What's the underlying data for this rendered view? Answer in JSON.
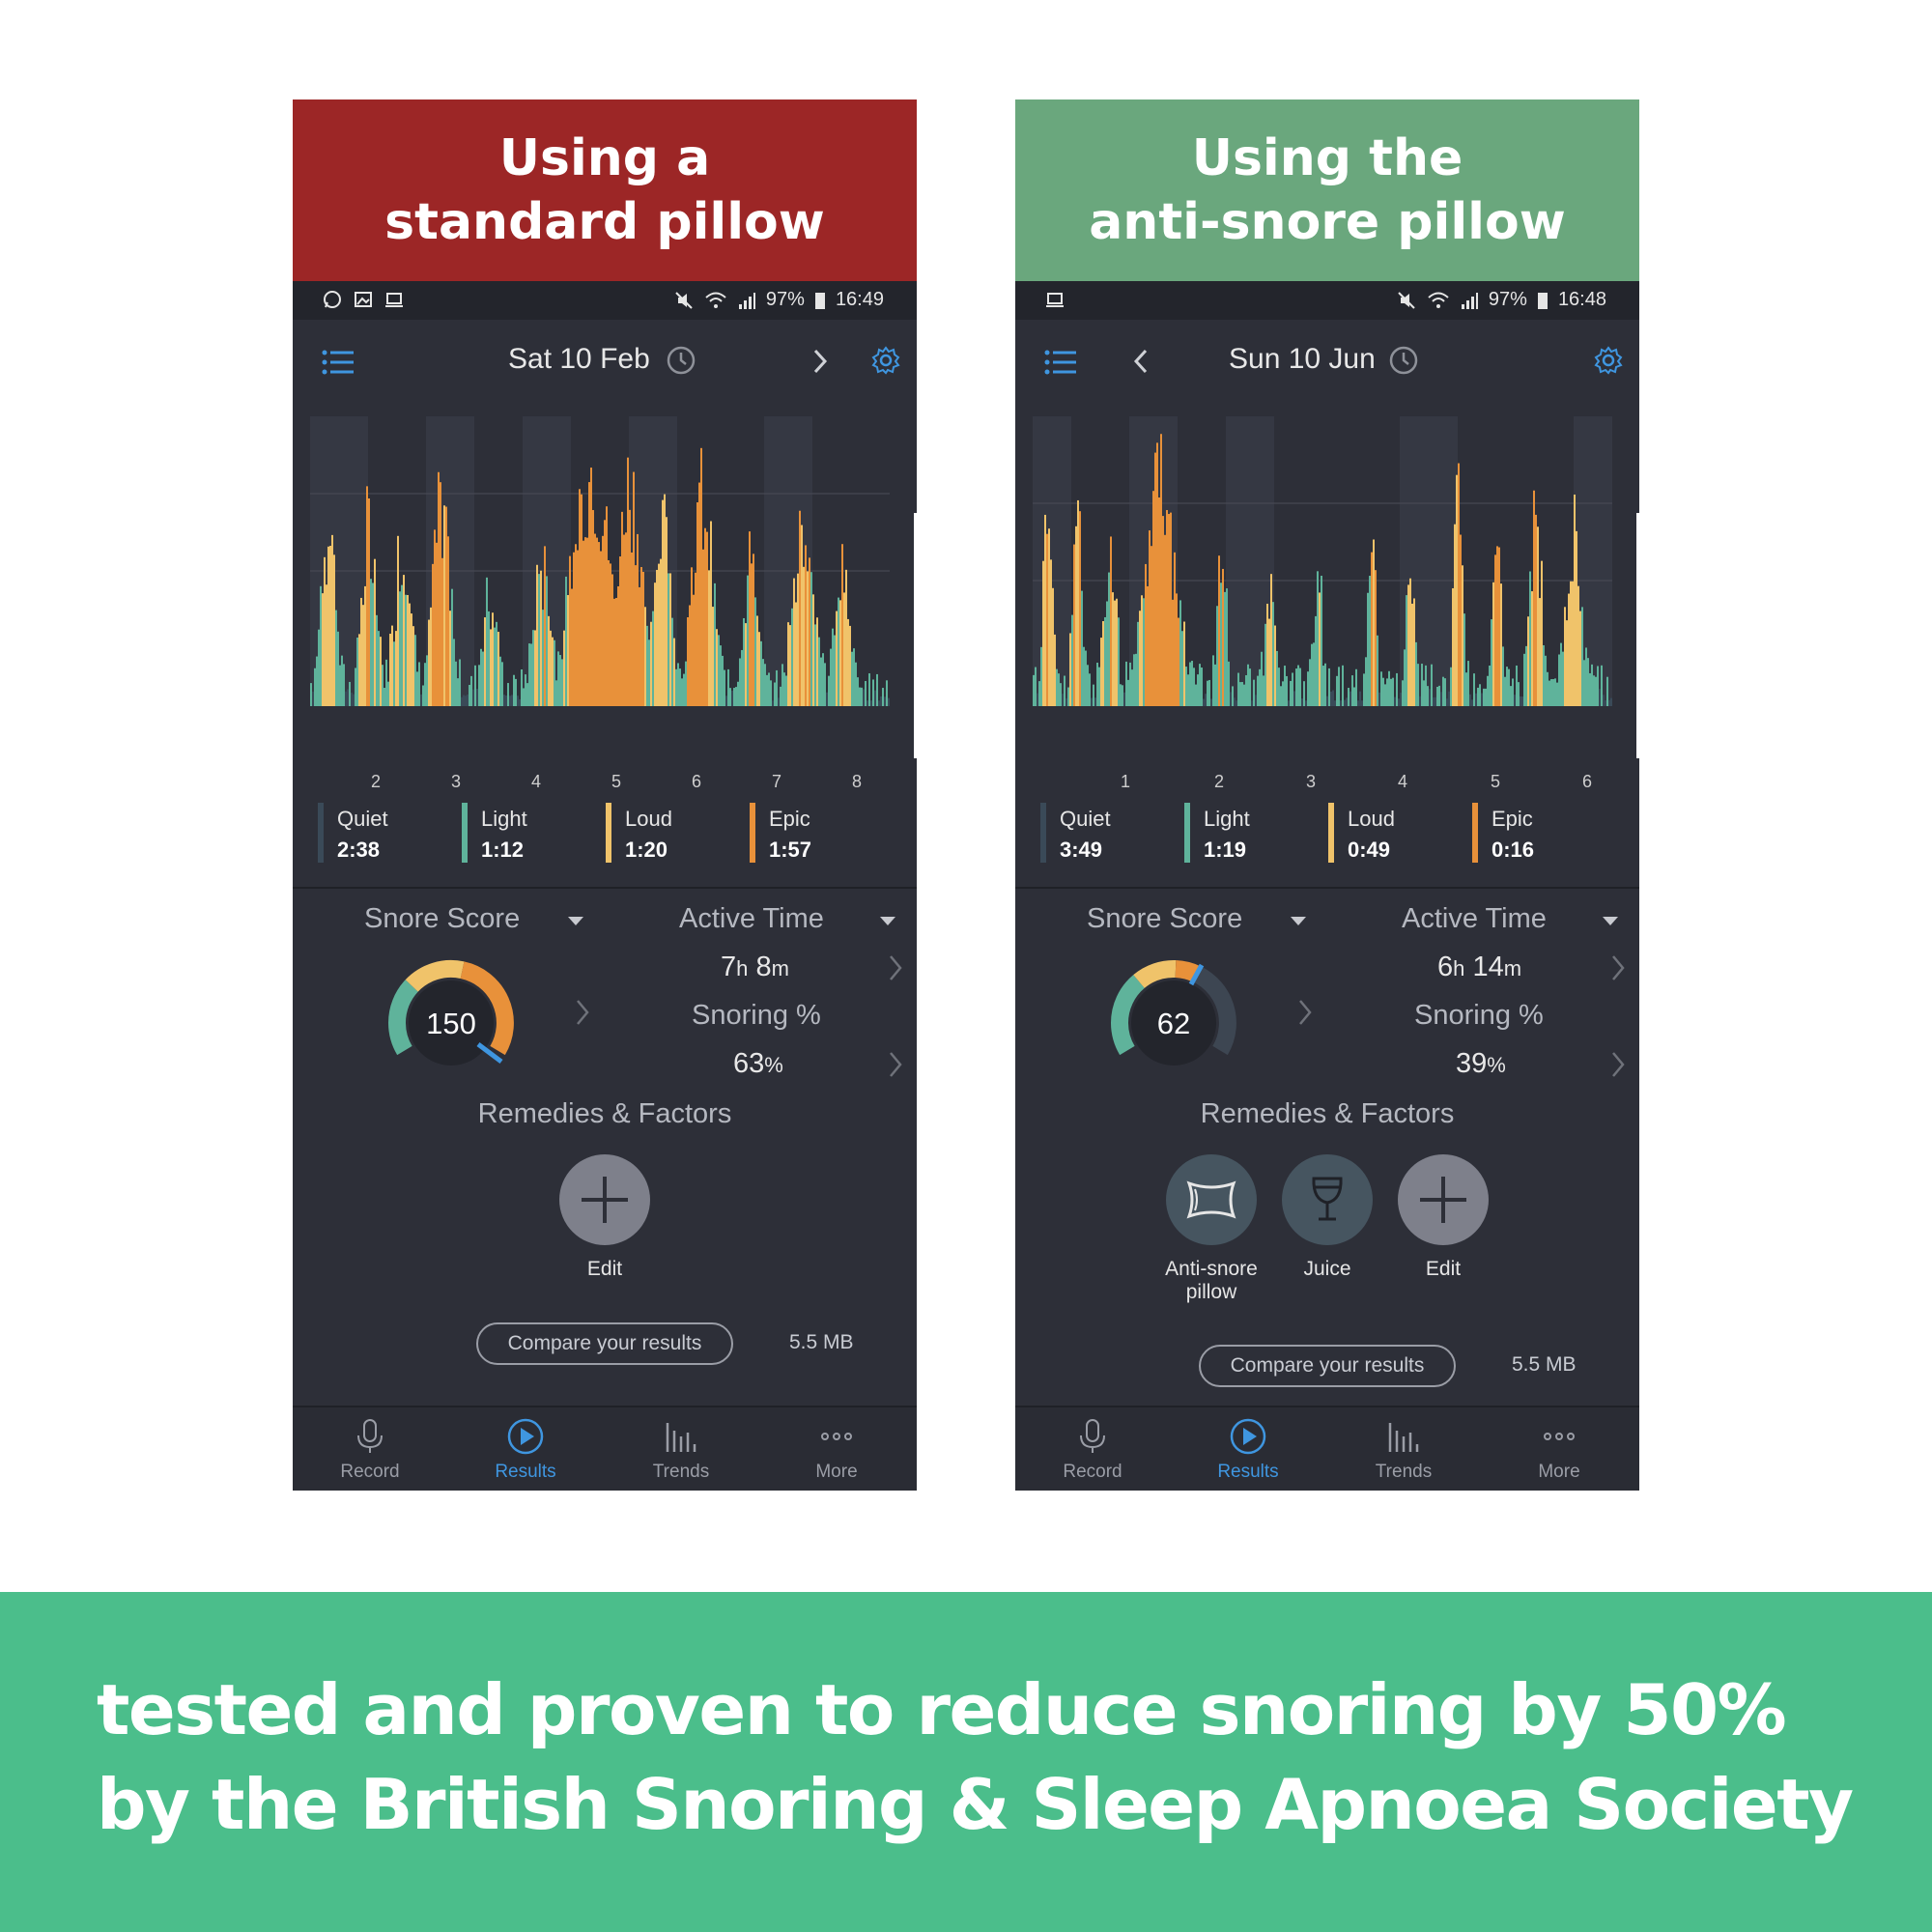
{
  "colors": {
    "quiet": "#3a4a58",
    "light": "#5fb39b",
    "loud": "#f0c36a",
    "epic": "#e8913a",
    "accent": "#3f96e0",
    "red_banner": "#9c2626",
    "green_banner": "#6aa77d",
    "footer": "#4bbe8b"
  },
  "panels": [
    {
      "banner": {
        "line1": "Using a",
        "line2": "standard pillow"
      },
      "status": {
        "battery": "97%",
        "time": "16:49"
      },
      "date": "Sat 10 Feb",
      "ticks": [
        "2",
        "3",
        "4",
        "5",
        "6",
        "7",
        "8"
      ],
      "legend": [
        {
          "name": "Quiet",
          "value": "2:38",
          "color": "#3a4a58"
        },
        {
          "name": "Light",
          "value": "1:12",
          "color": "#5fb39b"
        },
        {
          "name": "Loud",
          "value": "1:20",
          "color": "#f0c36a"
        },
        {
          "name": "Epic",
          "value": "1:57",
          "color": "#e8913a"
        }
      ],
      "snore_score_label": "Snore Score",
      "snore_score": "150",
      "active_time_label": "Active Time",
      "active_h": "7",
      "active_h_unit": "h",
      "active_m": "8",
      "active_m_unit": "m",
      "snoring_pct_label": "Snoring %",
      "snoring_pct": "63",
      "pct_unit": "%",
      "remedies_label": "Remedies & Factors",
      "remedies": [
        {
          "label": "Edit",
          "icon": "plus-icon"
        }
      ],
      "compare_label": "Compare your results",
      "size": "5.5 MB",
      "nav": [
        {
          "label": "Record"
        },
        {
          "label": "Results"
        },
        {
          "label": "Trends"
        },
        {
          "label": "More"
        }
      ]
    },
    {
      "banner": {
        "line1": "Using the",
        "line2": "anti-snore pillow"
      },
      "status": {
        "battery": "97%",
        "time": "16:48"
      },
      "date": "Sun 10 Jun",
      "ticks": [
        "1",
        "2",
        "3",
        "4",
        "5",
        "6"
      ],
      "legend": [
        {
          "name": "Quiet",
          "value": "3:49",
          "color": "#3a4a58"
        },
        {
          "name": "Light",
          "value": "1:19",
          "color": "#5fb39b"
        },
        {
          "name": "Loud",
          "value": "0:49",
          "color": "#f0c36a"
        },
        {
          "name": "Epic",
          "value": "0:16",
          "color": "#e8913a"
        }
      ],
      "snore_score_label": "Snore Score",
      "snore_score": "62",
      "active_time_label": "Active Time",
      "active_h": "6",
      "active_h_unit": "h",
      "active_m": "14",
      "active_m_unit": "m",
      "snoring_pct_label": "Snoring %",
      "snoring_pct": "39",
      "pct_unit": "%",
      "remedies_label": "Remedies & Factors",
      "remedies": [
        {
          "label_l1": "Anti-snore",
          "label_l2": "pillow",
          "icon": "pillow-icon"
        },
        {
          "label": "Juice",
          "icon": "wine-glass-icon"
        },
        {
          "label": "Edit",
          "icon": "plus-icon"
        }
      ],
      "compare_label": "Compare your results",
      "size": "5.5 MB",
      "nav": [
        {
          "label": "Record"
        },
        {
          "label": "Results"
        },
        {
          "label": "Trends"
        },
        {
          "label": "More"
        }
      ]
    }
  ],
  "footer": {
    "line1": "tested and proven to reduce snoring by 50%",
    "line2": "by the British Snoring & Sleep Apnoea Society"
  }
}
